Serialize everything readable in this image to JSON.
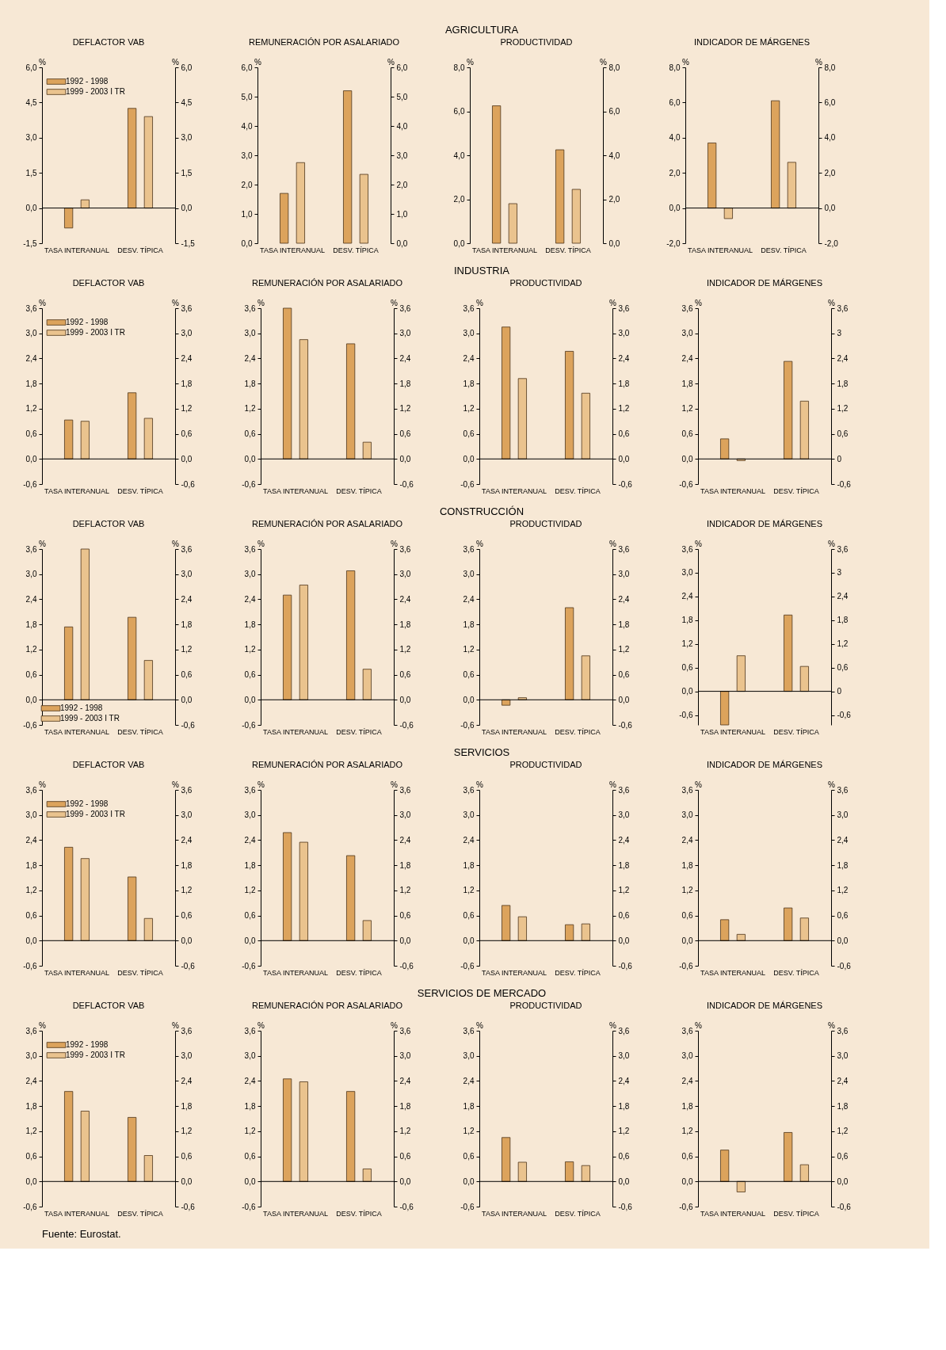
{
  "chart_data": [
    {
      "type": "bar",
      "title": "DEFLACTOR VAB",
      "annotations": [
        "AGRICULTURA"
      ],
      "categories": [
        "TASA INTERANUAL",
        "DESV. TÍPICA"
      ],
      "legend": "top left",
      "ylabel": "%",
      "y2label": "%",
      "ylim": [
        -1.5,
        6
      ],
      "y2lim": [
        -1.5,
        6
      ],
      "yticks": [
        {
          "value": -1.5,
          "label": "-1,5"
        },
        {
          "value": 0,
          "label": "0,0"
        },
        {
          "value": 1.5,
          "label": "1,5"
        },
        {
          "value": 3,
          "label": "3,0"
        },
        {
          "value": 4.5,
          "label": "4,5"
        },
        {
          "value": 6,
          "label": "6,0"
        }
      ],
      "y2ticks": [
        {
          "value": -1.5,
          "label": "-1,5"
        },
        {
          "value": 0,
          "label": "0,0"
        },
        {
          "value": 1.5,
          "label": "1,5"
        },
        {
          "value": 3,
          "label": "3,0"
        },
        {
          "value": 4.5,
          "label": "4,5"
        },
        {
          "value": 6,
          "label": "6,0"
        }
      ],
      "ref_lines": [
        {
          "axis": "y",
          "value": 0
        }
      ],
      "series": [
        {
          "name": "1992 - 1998",
          "color": "#dca35c",
          "values": [
            -0.85,
            4.25
          ]
        },
        {
          "name": "1999 - 2003 I TR",
          "color": "#eac38e",
          "values": [
            0.35,
            3.9
          ]
        }
      ]
    },
    {
      "type": "bar",
      "title": "REMUNERACIÓN POR ASALARIADO",
      "categories": [
        "TASA INTERANUAL",
        "DESV. TÍPICA"
      ],
      "ylabel": "%",
      "y2label": "%",
      "ylim": [
        0,
        6
      ],
      "y2lim": [
        0,
        6
      ],
      "yticks": [
        {
          "value": 0,
          "label": "0,0"
        },
        {
          "value": 1,
          "label": "1,0"
        },
        {
          "value": 2,
          "label": "2,0"
        },
        {
          "value": 3,
          "label": "3,0"
        },
        {
          "value": 4,
          "label": "4,0"
        },
        {
          "value": 5,
          "label": "5,0"
        },
        {
          "value": 6,
          "label": "6,0"
        }
      ],
      "y2ticks": [
        {
          "value": 0,
          "label": "0,0"
        },
        {
          "value": 1,
          "label": "1,0"
        },
        {
          "value": 2,
          "label": "2,0"
        },
        {
          "value": 3,
          "label": "3,0"
        },
        {
          "value": 4,
          "label": "4,0"
        },
        {
          "value": 5,
          "label": "5,0"
        },
        {
          "value": 6,
          "label": "6,0"
        }
      ],
      "series": [
        {
          "color": "#dca35c",
          "values": [
            1.7,
            5.2
          ]
        },
        {
          "color": "#eac38e",
          "values": [
            2.75,
            2.35
          ]
        }
      ]
    },
    {
      "type": "bar",
      "title": "PRODUCTIVIDAD",
      "categories": [
        "TASA INTERANUAL",
        "DESV. TÍPICA"
      ],
      "ylabel": "%",
      "y2label": "%",
      "ylim": [
        0,
        8
      ],
      "y2lim": [
        0,
        8
      ],
      "yticks": [
        {
          "value": 0,
          "label": "0,0"
        },
        {
          "value": 2,
          "label": "2,0"
        },
        {
          "value": 4,
          "label": "4,0"
        },
        {
          "value": 6,
          "label": "6,0"
        },
        {
          "value": 8,
          "label": "8,0"
        }
      ],
      "y2ticks": [
        {
          "value": 0,
          "label": "0,0"
        },
        {
          "value": 2,
          "label": "2,0"
        },
        {
          "value": 4,
          "label": "4,0"
        },
        {
          "value": 6,
          "label": "6,0"
        },
        {
          "value": 8,
          "label": "8,0"
        }
      ],
      "series": [
        {
          "color": "#dca35c",
          "values": [
            6.25,
            4.25
          ]
        },
        {
          "color": "#eac38e",
          "values": [
            1.8,
            2.45
          ]
        }
      ]
    },
    {
      "type": "bar",
      "title": "INDICADOR DE MÁRGENES",
      "categories": [
        "TASA INTERANUAL",
        "DESV. TÍPICA"
      ],
      "ylabel": "%",
      "y2label": "%",
      "ylim": [
        -2,
        8
      ],
      "y2lim": [
        -2,
        8
      ],
      "yticks": [
        {
          "value": -2,
          "label": "-2,0"
        },
        {
          "value": 0,
          "label": "0,0"
        },
        {
          "value": 2,
          "label": "2,0"
        },
        {
          "value": 4,
          "label": "4,0"
        },
        {
          "value": 6,
          "label": "6,0"
        },
        {
          "value": 8,
          "label": "8,0"
        }
      ],
      "y2ticks": [
        {
          "value": -2,
          "label": "-2,0"
        },
        {
          "value": 0,
          "label": "0,0"
        },
        {
          "value": 2,
          "label": "2,0"
        },
        {
          "value": 4,
          "label": "4,0"
        },
        {
          "value": 6,
          "label": "6,0"
        },
        {
          "value": 8,
          "label": "8,0"
        }
      ],
      "ref_lines": [
        {
          "axis": "y",
          "value": 0
        }
      ],
      "series": [
        {
          "color": "#dca35c",
          "values": [
            3.7,
            6.1
          ]
        },
        {
          "color": "#eac38e",
          "values": [
            -0.6,
            2.6
          ]
        }
      ]
    },
    {
      "type": "bar",
      "title": "DEFLACTOR VAB",
      "annotations": [
        "INDUSTRIA"
      ],
      "categories": [
        "TASA INTERANUAL",
        "DESV. TÍPICA"
      ],
      "legend": "top left",
      "ylabel": "%",
      "y2label": "%",
      "ylim": [
        -0.6,
        3.6
      ],
      "y2lim": [
        -0.6,
        3.6
      ],
      "yticks": [
        {
          "value": -0.6,
          "label": "-0,6"
        },
        {
          "value": 0,
          "label": "0,0"
        },
        {
          "value": 0.6,
          "label": "0,6"
        },
        {
          "value": 1.2,
          "label": "1,2"
        },
        {
          "value": 1.8,
          "label": "1,8"
        },
        {
          "value": 2.4,
          "label": "2,4"
        },
        {
          "value": 3,
          "label": "3,0"
        },
        {
          "value": 3.6,
          "label": "3,6"
        }
      ],
      "y2ticks": [
        {
          "value": -0.6,
          "label": "-0,6"
        },
        {
          "value": 0,
          "label": "0,0"
        },
        {
          "value": 0.6,
          "label": "0,6"
        },
        {
          "value": 1.2,
          "label": "1,2"
        },
        {
          "value": 1.8,
          "label": "1,8"
        },
        {
          "value": 2.4,
          "label": "2,4"
        },
        {
          "value": 3,
          "label": "3,0"
        },
        {
          "value": 3.6,
          "label": "3,6"
        }
      ],
      "ref_lines": [
        {
          "axis": "y",
          "value": 0
        }
      ],
      "series": [
        {
          "name": "1992 - 1998",
          "color": "#dca35c",
          "values": [
            0.93,
            1.58
          ]
        },
        {
          "name": "1999 - 2003 I TR",
          "color": "#eac38e",
          "values": [
            0.9,
            0.97
          ]
        }
      ]
    },
    {
      "type": "bar",
      "title": "REMUNERACIÓN POR ASALARIADO",
      "categories": [
        "TASA INTERANUAL",
        "DESV. TÍPICA"
      ],
      "ylabel": "%",
      "y2label": "%",
      "ylim": [
        -0.6,
        3.6
      ],
      "y2lim": [
        -0.6,
        3.6
      ],
      "yticks": [
        {
          "value": -0.6,
          "label": "-0,6"
        },
        {
          "value": 0,
          "label": "0,0"
        },
        {
          "value": 0.6,
          "label": "0,6"
        },
        {
          "value": 1.2,
          "label": "1,2"
        },
        {
          "value": 1.8,
          "label": "1,8"
        },
        {
          "value": 2.4,
          "label": "2,4"
        },
        {
          "value": 3,
          "label": "3,0"
        },
        {
          "value": 3.6,
          "label": "3,6"
        }
      ],
      "y2ticks": [
        {
          "value": -0.6,
          "label": "-0,6"
        },
        {
          "value": 0,
          "label": "0,0"
        },
        {
          "value": 0.6,
          "label": "0,6"
        },
        {
          "value": 1.2,
          "label": "1,2"
        },
        {
          "value": 1.8,
          "label": "1,8"
        },
        {
          "value": 2.4,
          "label": "2,4"
        },
        {
          "value": 3,
          "label": "3,0"
        },
        {
          "value": 3.6,
          "label": "3,6"
        }
      ],
      "ref_lines": [
        {
          "axis": "y",
          "value": 0
        }
      ],
      "series": [
        {
          "color": "#dca35c",
          "values": [
            3.6,
            2.75
          ]
        },
        {
          "color": "#eac38e",
          "values": [
            2.85,
            0.4
          ]
        }
      ]
    },
    {
      "type": "bar",
      "title": "PRODUCTIVIDAD",
      "categories": [
        "TASA INTERANUAL",
        "DESV. TÍPICA"
      ],
      "ylabel": "%",
      "y2label": "%",
      "ylim": [
        -0.6,
        3.6
      ],
      "y2lim": [
        -0.6,
        3.6
      ],
      "yticks": [
        {
          "value": -0.6,
          "label": "-0,6"
        },
        {
          "value": 0,
          "label": "0,0"
        },
        {
          "value": 0.6,
          "label": "0,6"
        },
        {
          "value": 1.2,
          "label": "1,2"
        },
        {
          "value": 1.8,
          "label": "1,8"
        },
        {
          "value": 2.4,
          "label": "2,4"
        },
        {
          "value": 3,
          "label": "3,0"
        },
        {
          "value": 3.6,
          "label": "3,6"
        }
      ],
      "y2ticks": [
        {
          "value": -0.6,
          "label": "-0,6"
        },
        {
          "value": 0,
          "label": "0,0"
        },
        {
          "value": 0.6,
          "label": "0,6"
        },
        {
          "value": 1.2,
          "label": "1,2"
        },
        {
          "value": 1.8,
          "label": "1,8"
        },
        {
          "value": 2.4,
          "label": "2,4"
        },
        {
          "value": 3,
          "label": "3,0"
        },
        {
          "value": 3.6,
          "label": "3,6"
        }
      ],
      "ref_lines": [
        {
          "axis": "y",
          "value": 0
        }
      ],
      "series": [
        {
          "color": "#dca35c",
          "values": [
            3.15,
            2.57
          ]
        },
        {
          "color": "#eac38e",
          "values": [
            1.92,
            1.57
          ]
        }
      ]
    },
    {
      "type": "bar",
      "title": "INDICADOR DE MÁRGENES",
      "categories": [
        "TASA INTERANUAL",
        "DESV. TÍPICA"
      ],
      "ylabel": "%",
      "y2label": "%",
      "ylim": [
        -0.6,
        3.6
      ],
      "y2lim": [
        -0.6,
        3.6
      ],
      "yticks": [
        {
          "value": -0.6,
          "label": "-0,6"
        },
        {
          "value": 0,
          "label": "0,0"
        },
        {
          "value": 0.6,
          "label": "0,6"
        },
        {
          "value": 1.2,
          "label": "1,2"
        },
        {
          "value": 1.8,
          "label": "1,8"
        },
        {
          "value": 2.4,
          "label": "2,4"
        },
        {
          "value": 3,
          "label": "3,0"
        },
        {
          "value": 3.6,
          "label": "3,6"
        }
      ],
      "y2ticks": [
        {
          "value": -0.6,
          "label": "-0,6"
        },
        {
          "value": 0,
          "label": "0"
        },
        {
          "value": 0.6,
          "label": "0,6"
        },
        {
          "value": 1.2,
          "label": "1,2"
        },
        {
          "value": 1.8,
          "label": "1,8"
        },
        {
          "value": 2.4,
          "label": "2,4"
        },
        {
          "value": 3,
          "label": "3"
        },
        {
          "value": 3.6,
          "label": "3,6"
        }
      ],
      "ref_lines": [
        {
          "axis": "y",
          "value": 0
        }
      ],
      "series": [
        {
          "color": "#dca35c",
          "values": [
            0.48,
            2.33
          ]
        },
        {
          "color": "#eac38e",
          "values": [
            -0.04,
            1.38
          ]
        }
      ]
    },
    {
      "type": "bar",
      "title": "DEFLACTOR VAB",
      "annotations": [
        "CONSTRUCCIÓN"
      ],
      "categories": [
        "TASA INTERANUAL",
        "DESV. TÍPICA"
      ],
      "legend": "bottom left",
      "ylabel": "%",
      "y2label": "%",
      "ylim": [
        -0.6,
        3.6
      ],
      "y2lim": [
        -0.6,
        3.6
      ],
      "yticks": [
        {
          "value": -0.6,
          "label": "-0,6"
        },
        {
          "value": 0,
          "label": "0,0"
        },
        {
          "value": 0.6,
          "label": "0,6"
        },
        {
          "value": 1.2,
          "label": "1,2"
        },
        {
          "value": 1.8,
          "label": "1,8"
        },
        {
          "value": 2.4,
          "label": "2,4"
        },
        {
          "value": 3,
          "label": "3,0"
        },
        {
          "value": 3.6,
          "label": "3,6"
        }
      ],
      "y2ticks": [
        {
          "value": -0.6,
          "label": "-0,6"
        },
        {
          "value": 0,
          "label": "0,0"
        },
        {
          "value": 0.6,
          "label": "0,6"
        },
        {
          "value": 1.2,
          "label": "1,2"
        },
        {
          "value": 1.8,
          "label": "1,8"
        },
        {
          "value": 2.4,
          "label": "2,4"
        },
        {
          "value": 3,
          "label": "3,0"
        },
        {
          "value": 3.6,
          "label": "3,6"
        }
      ],
      "ref_lines": [
        {
          "axis": "y",
          "value": 0
        }
      ],
      "series": [
        {
          "name": "1992 - 1998",
          "color": "#dca35c",
          "values": [
            1.74,
            1.97
          ]
        },
        {
          "name": "1999 - 2003 I TR",
          "color": "#eac38e",
          "values": [
            3.6,
            0.94
          ]
        }
      ]
    },
    {
      "type": "bar",
      "title": "REMUNERACIÓN POR ASALARIADO",
      "categories": [
        "TASA INTERANUAL",
        "DESV. TÍPICA"
      ],
      "ylabel": "%",
      "y2label": "%",
      "ylim": [
        -0.6,
        3.6
      ],
      "y2lim": [
        -0.6,
        3.6
      ],
      "yticks": [
        {
          "value": -0.6,
          "label": "-0,6"
        },
        {
          "value": 0,
          "label": "0,0"
        },
        {
          "value": 0.6,
          "label": "0,6"
        },
        {
          "value": 1.2,
          "label": "1,2"
        },
        {
          "value": 1.8,
          "label": "1,8"
        },
        {
          "value": 2.4,
          "label": "2,4"
        },
        {
          "value": 3,
          "label": "3,0"
        },
        {
          "value": 3.6,
          "label": "3,6"
        }
      ],
      "y2ticks": [
        {
          "value": -0.6,
          "label": "-0,6"
        },
        {
          "value": 0,
          "label": "0,0"
        },
        {
          "value": 0.6,
          "label": "0,6"
        },
        {
          "value": 1.2,
          "label": "1,2"
        },
        {
          "value": 1.8,
          "label": "1,8"
        },
        {
          "value": 2.4,
          "label": "2,4"
        },
        {
          "value": 3,
          "label": "3,0"
        },
        {
          "value": 3.6,
          "label": "3,6"
        }
      ],
      "ref_lines": [
        {
          "axis": "y",
          "value": 0
        }
      ],
      "series": [
        {
          "color": "#dca35c",
          "values": [
            2.5,
            3.08
          ]
        },
        {
          "color": "#eac38e",
          "values": [
            2.74,
            0.73
          ]
        }
      ]
    },
    {
      "type": "bar",
      "title": "PRODUCTIVIDAD",
      "categories": [
        "TASA INTERANUAL",
        "DESV. TÍPICA"
      ],
      "ylabel": "%",
      "y2label": "%",
      "ylim": [
        -0.6,
        3.6
      ],
      "y2lim": [
        -0.6,
        3.6
      ],
      "yticks": [
        {
          "value": -0.6,
          "label": "-0,6"
        },
        {
          "value": 0,
          "label": "0,0"
        },
        {
          "value": 0.6,
          "label": "0,6"
        },
        {
          "value": 1.2,
          "label": "1,2"
        },
        {
          "value": 1.8,
          "label": "1,8"
        },
        {
          "value": 2.4,
          "label": "2,4"
        },
        {
          "value": 3,
          "label": "3,0"
        },
        {
          "value": 3.6,
          "label": "3,6"
        }
      ],
      "y2ticks": [
        {
          "value": -0.6,
          "label": "-0,6"
        },
        {
          "value": 0,
          "label": "0,0"
        },
        {
          "value": 0.6,
          "label": "0,6"
        },
        {
          "value": 1.2,
          "label": "1,2"
        },
        {
          "value": 1.8,
          "label": "1,8"
        },
        {
          "value": 2.4,
          "label": "2,4"
        },
        {
          "value": 3,
          "label": "3,0"
        },
        {
          "value": 3.6,
          "label": "3,6"
        }
      ],
      "ref_lines": [
        {
          "axis": "y",
          "value": 0
        }
      ],
      "series": [
        {
          "color": "#dca35c",
          "values": [
            -0.13,
            2.2
          ]
        },
        {
          "color": "#eac38e",
          "values": [
            0.05,
            1.05
          ]
        }
      ]
    },
    {
      "type": "bar",
      "title": "INDICADOR DE MÁRGENES",
      "categories": [
        "TASA INTERANUAL",
        "DESV. TÍPICA"
      ],
      "ylabel": "%",
      "y2label": "%",
      "ylim": [
        -0.85,
        3.6
      ],
      "y2lim": [
        -0.85,
        3.6
      ],
      "yticks": [
        {
          "value": -0.6,
          "label": "-0,6"
        },
        {
          "value": 0,
          "label": "0,0"
        },
        {
          "value": 0.6,
          "label": "0,6"
        },
        {
          "value": 1.2,
          "label": "1,2"
        },
        {
          "value": 1.8,
          "label": "1,8"
        },
        {
          "value": 2.4,
          "label": "2,4"
        },
        {
          "value": 3,
          "label": "3,0"
        },
        {
          "value": 3.6,
          "label": "3,6"
        }
      ],
      "y2ticks": [
        {
          "value": -0.6,
          "label": "-0,6"
        },
        {
          "value": 0,
          "label": "0"
        },
        {
          "value": 0.6,
          "label": "0,6"
        },
        {
          "value": 1.2,
          "label": "1,2"
        },
        {
          "value": 1.8,
          "label": "1,8"
        },
        {
          "value": 2.4,
          "label": "2,4"
        },
        {
          "value": 3,
          "label": "3"
        },
        {
          "value": 3.6,
          "label": "3,6"
        }
      ],
      "ref_lines": [
        {
          "axis": "y",
          "value": 0
        }
      ],
      "series": [
        {
          "color": "#dca35c",
          "values": [
            -0.85,
            1.93
          ]
        },
        {
          "color": "#eac38e",
          "values": [
            0.9,
            0.63
          ]
        }
      ]
    },
    {
      "type": "bar",
      "title": "DEFLACTOR VAB",
      "annotations": [
        "SERVICIOS"
      ],
      "categories": [
        "TASA INTERANUAL",
        "DESV. TÍPICA"
      ],
      "legend": "top left",
      "ylabel": "%",
      "y2label": "%",
      "ylim": [
        -0.6,
        3.6
      ],
      "y2lim": [
        -0.6,
        3.6
      ],
      "yticks": [
        {
          "value": -0.6,
          "label": "-0,6"
        },
        {
          "value": 0,
          "label": "0,0"
        },
        {
          "value": 0.6,
          "label": "0,6"
        },
        {
          "value": 1.2,
          "label": "1,2"
        },
        {
          "value": 1.8,
          "label": "1,8"
        },
        {
          "value": 2.4,
          "label": "2,4"
        },
        {
          "value": 3,
          "label": "3,0"
        },
        {
          "value": 3.6,
          "label": "3,6"
        }
      ],
      "y2ticks": [
        {
          "value": -0.6,
          "label": "-0,6"
        },
        {
          "value": 0,
          "label": "0,0"
        },
        {
          "value": 0.6,
          "label": "0,6"
        },
        {
          "value": 1.2,
          "label": "1,2"
        },
        {
          "value": 1.8,
          "label": "1,8"
        },
        {
          "value": 2.4,
          "label": "2,4"
        },
        {
          "value": 3,
          "label": "3,0"
        },
        {
          "value": 3.6,
          "label": "3,6"
        }
      ],
      "ref_lines": [
        {
          "axis": "y",
          "value": 0
        }
      ],
      "series": [
        {
          "name": "1992 - 1998",
          "color": "#dca35c",
          "values": [
            2.23,
            1.52
          ]
        },
        {
          "name": "1999 - 2003 I TR",
          "color": "#eac38e",
          "values": [
            1.96,
            0.53
          ]
        }
      ]
    },
    {
      "type": "bar",
      "title": "REMUNERACIÓN POR ASALARIADO",
      "categories": [
        "TASA INTERANUAL",
        "DESV. TÍPICA"
      ],
      "ylabel": "%",
      "y2label": "%",
      "ylim": [
        -0.6,
        3.6
      ],
      "y2lim": [
        -0.6,
        3.6
      ],
      "yticks": [
        {
          "value": -0.6,
          "label": "-0,6"
        },
        {
          "value": 0,
          "label": "0,0"
        },
        {
          "value": 0.6,
          "label": "0,6"
        },
        {
          "value": 1.2,
          "label": "1,2"
        },
        {
          "value": 1.8,
          "label": "1,8"
        },
        {
          "value": 2.4,
          "label": "2,4"
        },
        {
          "value": 3,
          "label": "3,0"
        },
        {
          "value": 3.6,
          "label": "3,6"
        }
      ],
      "y2ticks": [
        {
          "value": -0.6,
          "label": "-0,6"
        },
        {
          "value": 0,
          "label": "0,0"
        },
        {
          "value": 0.6,
          "label": "0,6"
        },
        {
          "value": 1.2,
          "label": "1,2"
        },
        {
          "value": 1.8,
          "label": "1,8"
        },
        {
          "value": 2.4,
          "label": "2,4"
        },
        {
          "value": 3,
          "label": "3,0"
        },
        {
          "value": 3.6,
          "label": "3,6"
        }
      ],
      "ref_lines": [
        {
          "axis": "y",
          "value": 0
        }
      ],
      "series": [
        {
          "color": "#dca35c",
          "values": [
            2.58,
            2.03
          ]
        },
        {
          "color": "#eac38e",
          "values": [
            2.35,
            0.48
          ]
        }
      ]
    },
    {
      "type": "bar",
      "title": "PRODUCTIVIDAD",
      "categories": [
        "TASA INTERANUAL",
        "DESV. TÍPICA"
      ],
      "ylabel": "%",
      "y2label": "%",
      "ylim": [
        -0.6,
        3.6
      ],
      "y2lim": [
        -0.6,
        3.6
      ],
      "yticks": [
        {
          "value": -0.6,
          "label": "-0,6"
        },
        {
          "value": 0,
          "label": "0,0"
        },
        {
          "value": 0.6,
          "label": "0,6"
        },
        {
          "value": 1.2,
          "label": "1,2"
        },
        {
          "value": 1.8,
          "label": "1,8"
        },
        {
          "value": 2.4,
          "label": "2,4"
        },
        {
          "value": 3,
          "label": "3,0"
        },
        {
          "value": 3.6,
          "label": "3,6"
        }
      ],
      "y2ticks": [
        {
          "value": -0.6,
          "label": "-0,6"
        },
        {
          "value": 0,
          "label": "0,0"
        },
        {
          "value": 0.6,
          "label": "0,6"
        },
        {
          "value": 1.2,
          "label": "1,2"
        },
        {
          "value": 1.8,
          "label": "1,8"
        },
        {
          "value": 2.4,
          "label": "2,4"
        },
        {
          "value": 3,
          "label": "3,0"
        },
        {
          "value": 3.6,
          "label": "3,6"
        }
      ],
      "ref_lines": [
        {
          "axis": "y",
          "value": 0
        }
      ],
      "series": [
        {
          "color": "#dca35c",
          "values": [
            0.84,
            0.38
          ]
        },
        {
          "color": "#eac38e",
          "values": [
            0.57,
            0.4
          ]
        }
      ]
    },
    {
      "type": "bar",
      "title": "INDICADOR DE MÁRGENES",
      "categories": [
        "TASA INTERANUAL",
        "DESV. TÍPICA"
      ],
      "ylabel": "%",
      "y2label": "%",
      "ylim": [
        -0.6,
        3.6
      ],
      "y2lim": [
        -0.6,
        3.6
      ],
      "yticks": [
        {
          "value": -0.6,
          "label": "-0,6"
        },
        {
          "value": 0,
          "label": "0,0"
        },
        {
          "value": 0.6,
          "label": "0,6"
        },
        {
          "value": 1.2,
          "label": "1,2"
        },
        {
          "value": 1.8,
          "label": "1,8"
        },
        {
          "value": 2.4,
          "label": "2,4"
        },
        {
          "value": 3,
          "label": "3,0"
        },
        {
          "value": 3.6,
          "label": "3,6"
        }
      ],
      "y2ticks": [
        {
          "value": -0.6,
          "label": "-0,6"
        },
        {
          "value": 0,
          "label": "0,0"
        },
        {
          "value": 0.6,
          "label": "0,6"
        },
        {
          "value": 1.2,
          "label": "1,2"
        },
        {
          "value": 1.8,
          "label": "1,8"
        },
        {
          "value": 2.4,
          "label": "2,4"
        },
        {
          "value": 3,
          "label": "3,0"
        },
        {
          "value": 3.6,
          "label": "3,6"
        }
      ],
      "ref_lines": [
        {
          "axis": "y",
          "value": 0
        }
      ],
      "series": [
        {
          "color": "#dca35c",
          "values": [
            0.5,
            0.78
          ]
        },
        {
          "color": "#eac38e",
          "values": [
            0.15,
            0.54
          ]
        }
      ]
    },
    {
      "type": "bar",
      "title": "DEFLACTOR VAB",
      "annotations": [
        "SERVICIOS DE MERCADO"
      ],
      "categories": [
        "TASA INTERANUAL",
        "DESV. TÍPICA"
      ],
      "legend": "top left",
      "ylabel": "%",
      "y2label": "%",
      "ylim": [
        -0.6,
        3.6
      ],
      "y2lim": [
        -0.6,
        3.6
      ],
      "yticks": [
        {
          "value": -0.6,
          "label": "-0,6"
        },
        {
          "value": 0,
          "label": "0,0"
        },
        {
          "value": 0.6,
          "label": "0,6"
        },
        {
          "value": 1.2,
          "label": "1,2"
        },
        {
          "value": 1.8,
          "label": "1,8"
        },
        {
          "value": 2.4,
          "label": "2,4"
        },
        {
          "value": 3,
          "label": "3,0"
        },
        {
          "value": 3.6,
          "label": "3,6"
        }
      ],
      "y2ticks": [
        {
          "value": -0.6,
          "label": "-0,6"
        },
        {
          "value": 0,
          "label": "0,0"
        },
        {
          "value": 0.6,
          "label": "0,6"
        },
        {
          "value": 1.2,
          "label": "1,2"
        },
        {
          "value": 1.8,
          "label": "1,8"
        },
        {
          "value": 2.4,
          "label": "2,4"
        },
        {
          "value": 3,
          "label": "3,0"
        },
        {
          "value": 3.6,
          "label": "3,6"
        }
      ],
      "ref_lines": [
        {
          "axis": "y",
          "value": 0
        }
      ],
      "series": [
        {
          "name": "1992 - 1998",
          "color": "#dca35c",
          "values": [
            2.15,
            1.53
          ]
        },
        {
          "name": "1999 - 2003 I TR",
          "color": "#eac38e",
          "values": [
            1.68,
            0.62
          ]
        }
      ]
    },
    {
      "type": "bar",
      "title": "REMUNERACIÓN POR ASALARIADO",
      "categories": [
        "TASA INTERANUAL",
        "DESV. TÍPICA"
      ],
      "ylabel": "%",
      "y2label": "%",
      "ylim": [
        -0.6,
        3.6
      ],
      "y2lim": [
        -0.6,
        3.6
      ],
      "yticks": [
        {
          "value": -0.6,
          "label": "-0,6"
        },
        {
          "value": 0,
          "label": "0,0"
        },
        {
          "value": 0.6,
          "label": "0,6"
        },
        {
          "value": 1.2,
          "label": "1,2"
        },
        {
          "value": 1.8,
          "label": "1,8"
        },
        {
          "value": 2.4,
          "label": "2,4"
        },
        {
          "value": 3,
          "label": "3,0"
        },
        {
          "value": 3.6,
          "label": "3,6"
        }
      ],
      "y2ticks": [
        {
          "value": -0.6,
          "label": "-0,6"
        },
        {
          "value": 0,
          "label": "0,0"
        },
        {
          "value": 0.6,
          "label": "0,6"
        },
        {
          "value": 1.2,
          "label": "1,2"
        },
        {
          "value": 1.8,
          "label": "1,8"
        },
        {
          "value": 2.4,
          "label": "2,4"
        },
        {
          "value": 3,
          "label": "3,0"
        },
        {
          "value": 3.6,
          "label": "3,6"
        }
      ],
      "ref_lines": [
        {
          "axis": "y",
          "value": 0
        }
      ],
      "series": [
        {
          "color": "#dca35c",
          "values": [
            2.45,
            2.15
          ]
        },
        {
          "color": "#eac38e",
          "values": [
            2.38,
            0.3
          ]
        }
      ]
    },
    {
      "type": "bar",
      "title": "PRODUCTIVIDAD",
      "categories": [
        "TASA INTERANUAL",
        "DESV. TÍPICA"
      ],
      "ylabel": "%",
      "y2label": "%",
      "ylim": [
        -0.6,
        3.6
      ],
      "y2lim": [
        -0.6,
        3.6
      ],
      "yticks": [
        {
          "value": -0.6,
          "label": "-0,6"
        },
        {
          "value": 0,
          "label": "0,0"
        },
        {
          "value": 0.6,
          "label": "0,6"
        },
        {
          "value": 1.2,
          "label": "1,2"
        },
        {
          "value": 1.8,
          "label": "1,8"
        },
        {
          "value": 2.4,
          "label": "2,4"
        },
        {
          "value": 3,
          "label": "3,0"
        },
        {
          "value": 3.6,
          "label": "3,6"
        }
      ],
      "y2ticks": [
        {
          "value": -0.6,
          "label": "-0,6"
        },
        {
          "value": 0,
          "label": "0,0"
        },
        {
          "value": 0.6,
          "label": "0,6"
        },
        {
          "value": 1.2,
          "label": "1,2"
        },
        {
          "value": 1.8,
          "label": "1,8"
        },
        {
          "value": 2.4,
          "label": "2,4"
        },
        {
          "value": 3,
          "label": "3,0"
        },
        {
          "value": 3.6,
          "label": "3,6"
        }
      ],
      "ref_lines": [
        {
          "axis": "y",
          "value": 0
        }
      ],
      "series": [
        {
          "color": "#dca35c",
          "values": [
            1.05,
            0.47
          ]
        },
        {
          "color": "#eac38e",
          "values": [
            0.46,
            0.38
          ]
        }
      ]
    },
    {
      "type": "bar",
      "title": "INDICADOR DE MÁRGENES",
      "annotations": [
        "Fuente: Eurostat."
      ],
      "categories": [
        "TASA INTERANUAL",
        "DESV. TÍPICA"
      ],
      "ylabel": "%",
      "y2label": "%",
      "ylim": [
        -0.6,
        3.6
      ],
      "y2lim": [
        -0.6,
        3.6
      ],
      "yticks": [
        {
          "value": -0.6,
          "label": "-0,6"
        },
        {
          "value": 0,
          "label": "0,0"
        },
        {
          "value": 0.6,
          "label": "0,6"
        },
        {
          "value": 1.2,
          "label": "1,2"
        },
        {
          "value": 1.8,
          "label": "1,8"
        },
        {
          "value": 2.4,
          "label": "2,4"
        },
        {
          "value": 3,
          "label": "3,0"
        },
        {
          "value": 3.6,
          "label": "3,6"
        }
      ],
      "y2ticks": [
        {
          "value": -0.6,
          "label": "-0,6"
        },
        {
          "value": 0,
          "label": "0,0"
        },
        {
          "value": 0.6,
          "label": "0,6"
        },
        {
          "value": 1.2,
          "label": "1,2"
        },
        {
          "value": 1.8,
          "label": "1,8"
        },
        {
          "value": 2.4,
          "label": "2,4"
        },
        {
          "value": 3,
          "label": "3,0"
        },
        {
          "value": 3.6,
          "label": "3,6"
        }
      ],
      "ref_lines": [
        {
          "axis": "y",
          "value": 0
        }
      ],
      "series": [
        {
          "color": "#dca35c",
          "values": [
            0.75,
            1.17
          ]
        },
        {
          "color": "#eac38e",
          "values": [
            -0.25,
            0.4
          ]
        }
      ]
    }
  ]
}
